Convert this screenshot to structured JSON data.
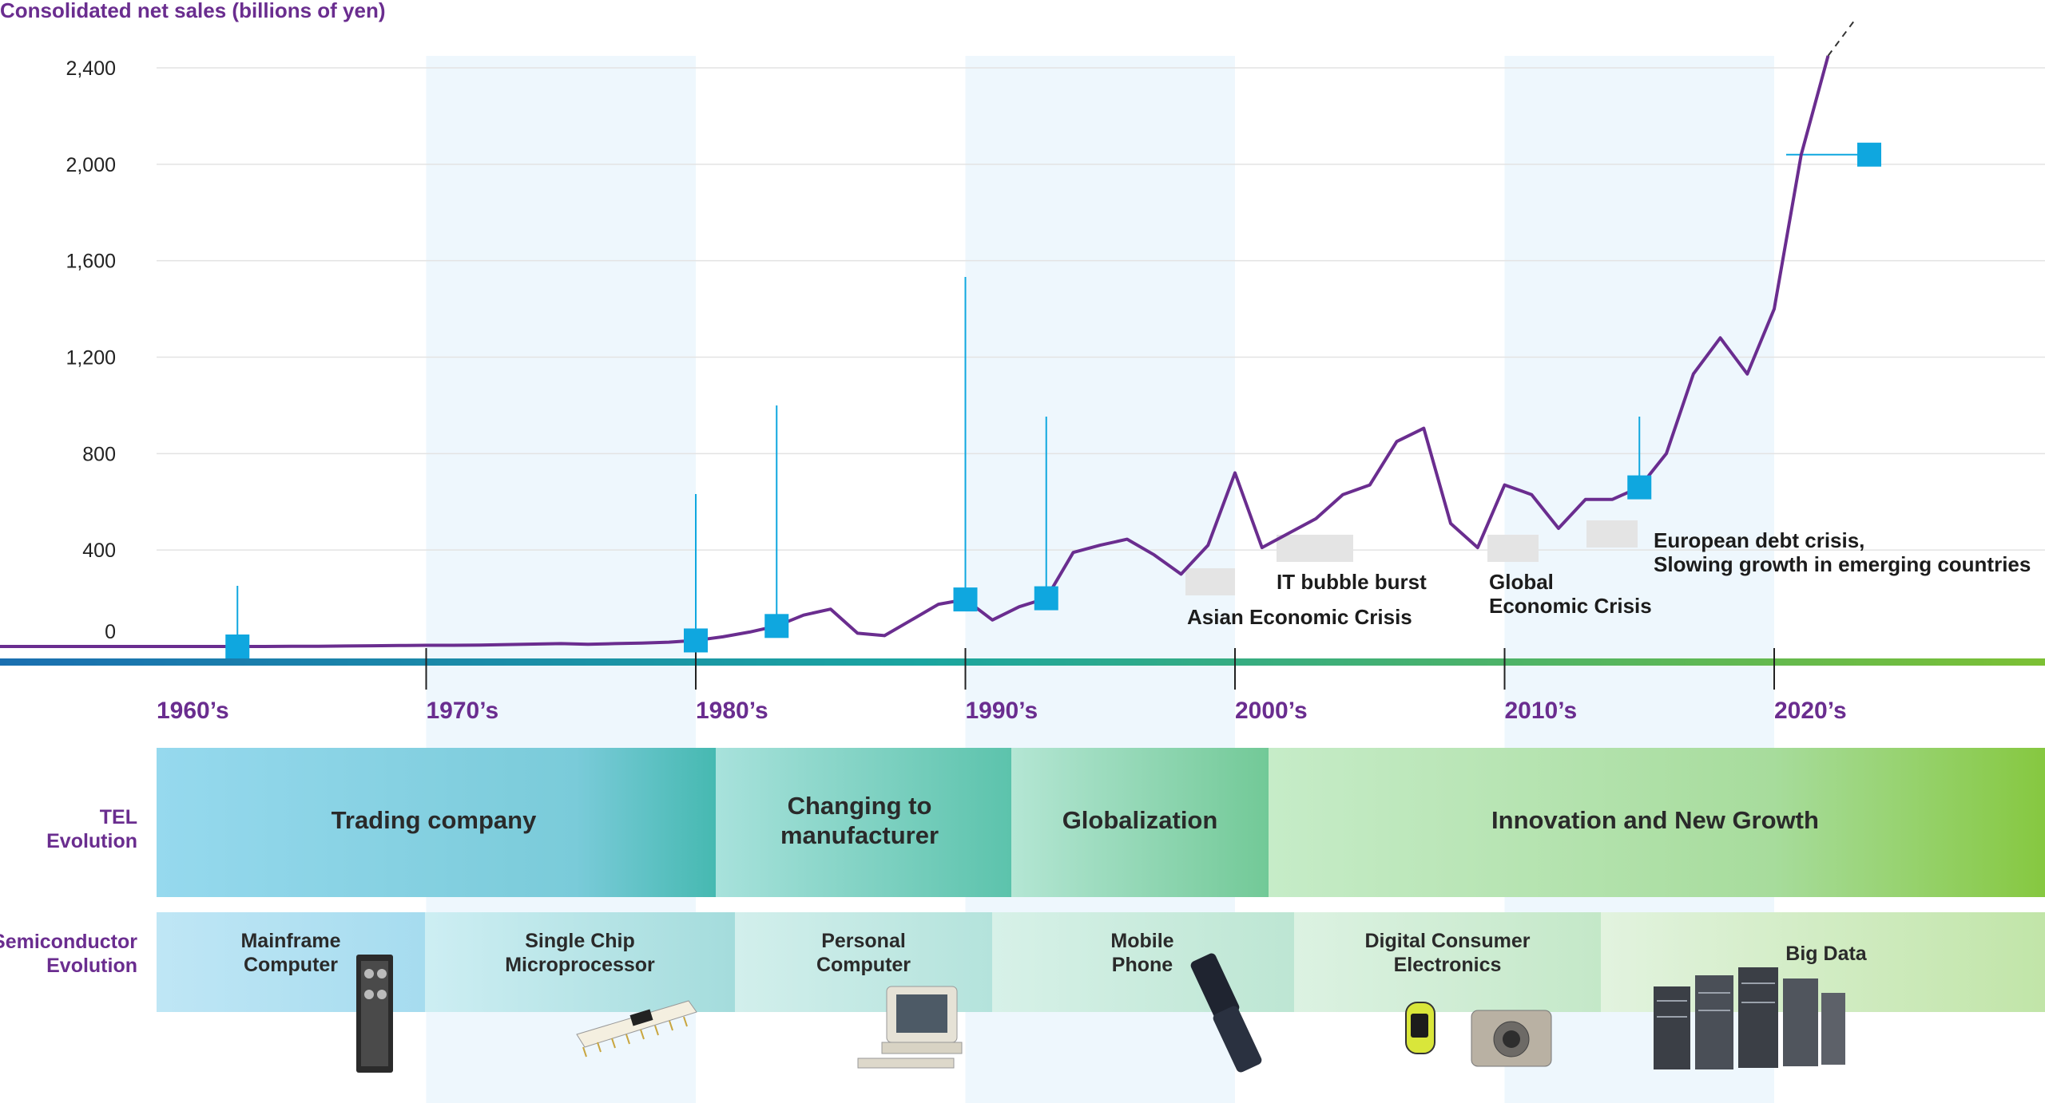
{
  "chart_data": {
    "type": "line",
    "title": "Consolidated net sales (billions of yen)",
    "ylim": [
      0,
      2400
    ],
    "yticks": [
      "0",
      "400",
      "800",
      "1,200",
      "1,600",
      "2,000",
      "2,400"
    ],
    "grid": true,
    "decades": [
      "1960’s",
      "1970’s",
      "1980’s",
      "1990’s",
      "2000’s",
      "2010’s",
      "2020’s"
    ],
    "series": [
      {
        "x": [
          1963,
          1964,
          1965,
          1966,
          1967,
          1968,
          1969,
          1970,
          1971,
          1972,
          1973,
          1974,
          1975,
          1976,
          1977,
          1978,
          1979,
          1980,
          1981,
          1982,
          1983,
          1984,
          1985,
          1986,
          1987,
          1988,
          1989,
          1990,
          1991,
          1992,
          1993,
          1994,
          1995,
          1996,
          1997,
          1998,
          1999,
          2000,
          2001,
          2002,
          2003,
          2004,
          2005,
          2006,
          2007,
          2008,
          2009,
          2010,
          2011,
          2012,
          2013,
          2014,
          2015,
          2016,
          2017,
          2018,
          2019,
          2020,
          2021,
          2022,
          2023
        ],
        "values": [
          0,
          0,
          1,
          1,
          2,
          3,
          4,
          5,
          5,
          6,
          8,
          10,
          12,
          9,
          12,
          14,
          18,
          25,
          40,
          60,
          85,
          130,
          155,
          55,
          45,
          110,
          175,
          195,
          110,
          165,
          200,
          390,
          420,
          445,
          380,
          300,
          420,
          720,
          410,
          470,
          530,
          630,
          670,
          850,
          905,
          510,
          410,
          670,
          630,
          490,
          610,
          610,
          660,
          800,
          1130,
          1280,
          1130,
          1400,
          2040,
          2450,
          2600
        ]
      }
    ],
    "highlights": [
      1963,
      1980,
      1983,
      1990,
      1993,
      2015,
      2023
    ],
    "events": [
      {
        "lines": [
          "Asian Economic Crisis"
        ],
        "year": 1998
      },
      {
        "lines": [
          "IT bubble burst"
        ],
        "year": 2002
      },
      {
        "lines": [
          "Global",
          "Economic Crisis"
        ],
        "year": 2009
      },
      {
        "lines": [
          "European debt crisis,",
          "Slowing growth in emerging countries"
        ],
        "year": 2013
      }
    ]
  },
  "tel_evolution": {
    "row_label": [
      "TEL",
      "Evolution"
    ],
    "phases": [
      {
        "lines": [
          "Trading company"
        ]
      },
      {
        "lines": [
          "Changing to",
          "manufacturer"
        ]
      },
      {
        "lines": [
          "Globalization"
        ]
      },
      {
        "lines": [
          "Innovation and New Growth"
        ]
      }
    ]
  },
  "semiconductor_evolution": {
    "row_label": [
      "Semiconductor",
      "Evolution"
    ],
    "phases": [
      {
        "lines": [
          "Mainframe",
          "Computer"
        ]
      },
      {
        "lines": [
          "Single Chip",
          "Microprocessor"
        ]
      },
      {
        "lines": [
          "Personal",
          "Computer"
        ]
      },
      {
        "lines": [
          "Mobile",
          "Phone"
        ]
      },
      {
        "lines": [
          "Digital Consumer",
          "Electronics"
        ]
      },
      {
        "lines": [
          "Big Data"
        ]
      }
    ]
  },
  "colors": {
    "line": "#6a2d8f",
    "marker": "#0fa7df",
    "band": "#eef7fd",
    "timeline_start": "#1a93c6",
    "timeline_end": "#79bf33"
  }
}
